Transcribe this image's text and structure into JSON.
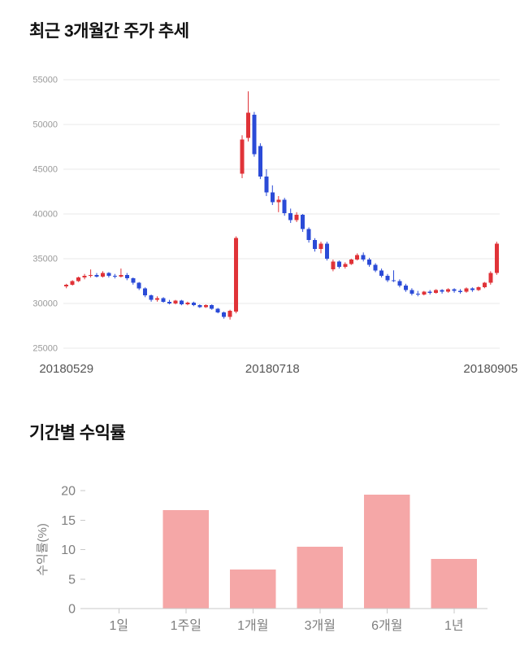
{
  "chart_data": [
    {
      "type": "candlestick",
      "title": "최근 3개월간 주가 추세",
      "xlabel": "",
      "ylabel": "",
      "ylim": [
        25000,
        55000
      ],
      "yticks": [
        25000,
        30000,
        35000,
        40000,
        45000,
        50000,
        55000
      ],
      "x_tick_labels": [
        "20180529",
        "20180718",
        "20180905"
      ],
      "x_tick_positions": [
        0,
        34,
        70
      ],
      "grid": true,
      "grid_color": "#e8e8e8",
      "up_color": "#e03338",
      "down_color": "#2b4bd7",
      "candles_ohlc": [
        [
          31900,
          32200,
          31700,
          32100
        ],
        [
          32100,
          32600,
          32000,
          32500
        ],
        [
          32500,
          33000,
          32400,
          32900
        ],
        [
          32900,
          33300,
          32700,
          33100
        ],
        [
          33100,
          33800,
          32900,
          33200
        ],
        [
          33200,
          33400,
          32900,
          33000
        ],
        [
          33000,
          33600,
          32900,
          33400
        ],
        [
          33400,
          33500,
          32900,
          33100
        ],
        [
          33100,
          33300,
          32800,
          33000
        ],
        [
          33000,
          33900,
          32900,
          33200
        ],
        [
          33200,
          33400,
          32600,
          32800
        ],
        [
          32800,
          32900,
          32100,
          32300
        ],
        [
          32300,
          32400,
          31500,
          31700
        ],
        [
          31700,
          31800,
          30700,
          30900
        ],
        [
          30900,
          31000,
          30200,
          30400
        ],
        [
          30400,
          30800,
          30200,
          30600
        ],
        [
          30600,
          30700,
          30100,
          30200
        ],
        [
          30200,
          30400,
          29900,
          30000
        ],
        [
          30000,
          30400,
          29900,
          30300
        ],
        [
          30300,
          30400,
          29800,
          29900
        ],
        [
          29900,
          30200,
          29800,
          30100
        ],
        [
          30100,
          30200,
          29700,
          29800
        ],
        [
          29800,
          29900,
          29500,
          29600
        ],
        [
          29600,
          29900,
          29500,
          29800
        ],
        [
          29800,
          29900,
          29300,
          29400
        ],
        [
          29400,
          29500,
          28900,
          29000
        ],
        [
          29000,
          29100,
          28300,
          28500
        ],
        [
          28500,
          29300,
          28200,
          29200
        ],
        [
          29100,
          37500,
          28900,
          37300
        ],
        [
          44500,
          48800,
          44000,
          48300
        ],
        [
          48500,
          53700,
          48100,
          51300
        ],
        [
          51100,
          51400,
          46400,
          46700
        ],
        [
          47600,
          47900,
          43900,
          44200
        ],
        [
          44200,
          45000,
          42000,
          42400
        ],
        [
          42400,
          43200,
          41000,
          41300
        ],
        [
          41300,
          42000,
          40200,
          41600
        ],
        [
          41600,
          41800,
          39800,
          40100
        ],
        [
          40100,
          40600,
          39000,
          39300
        ],
        [
          39300,
          40200,
          39100,
          39900
        ],
        [
          39900,
          40000,
          38000,
          38300
        ],
        [
          38300,
          38500,
          36800,
          37100
        ],
        [
          37100,
          37300,
          35800,
          36100
        ],
        [
          36100,
          36900,
          35600,
          36700
        ],
        [
          36700,
          36900,
          34800,
          35000
        ],
        [
          33800,
          34900,
          33600,
          34700
        ],
        [
          34700,
          34800,
          33900,
          34100
        ],
        [
          34100,
          34600,
          33900,
          34400
        ],
        [
          34400,
          35000,
          34300,
          34900
        ],
        [
          34900,
          35600,
          34800,
          35400
        ],
        [
          35400,
          35700,
          34700,
          34900
        ],
        [
          34900,
          35100,
          34100,
          34300
        ],
        [
          34300,
          34500,
          33500,
          33700
        ],
        [
          33700,
          33900,
          32900,
          33100
        ],
        [
          33100,
          33300,
          32400,
          32600
        ],
        [
          32600,
          33700,
          32400,
          32500
        ],
        [
          32500,
          32700,
          31800,
          32000
        ],
        [
          32000,
          32200,
          31300,
          31500
        ],
        [
          31500,
          31700,
          30900,
          31100
        ],
        [
          31100,
          31400,
          30800,
          31000
        ],
        [
          31000,
          31400,
          30900,
          31300
        ],
        [
          31300,
          31500,
          31000,
          31200
        ],
        [
          31200,
          31600,
          31100,
          31500
        ],
        [
          31500,
          31600,
          31100,
          31300
        ],
        [
          31300,
          31700,
          31200,
          31600
        ],
        [
          31600,
          31700,
          31200,
          31400
        ],
        [
          31400,
          31600,
          31100,
          31300
        ],
        [
          31300,
          31800,
          31200,
          31700
        ],
        [
          31700,
          31800,
          31300,
          31500
        ],
        [
          31500,
          31900,
          31400,
          31800
        ],
        [
          31800,
          32400,
          31700,
          32300
        ],
        [
          32300,
          33600,
          32100,
          33400
        ],
        [
          33400,
          36900,
          33200,
          36700
        ]
      ]
    },
    {
      "type": "bar",
      "title": "기간별 수익률",
      "categories": [
        "1일",
        "1주일",
        "1개월",
        "3개월",
        "6개월",
        "1년"
      ],
      "values": [
        0,
        16.7,
        6.6,
        10.5,
        19.3,
        8.4
      ],
      "xlabel": "",
      "ylabel": "수익률(%)",
      "ylim": [
        0,
        20
      ],
      "yticks": [
        0,
        5,
        10,
        15,
        20
      ],
      "grid": false,
      "bar_color": "#f5a7a7",
      "axis_color": "#c9c9c9",
      "legend": "none"
    }
  ]
}
